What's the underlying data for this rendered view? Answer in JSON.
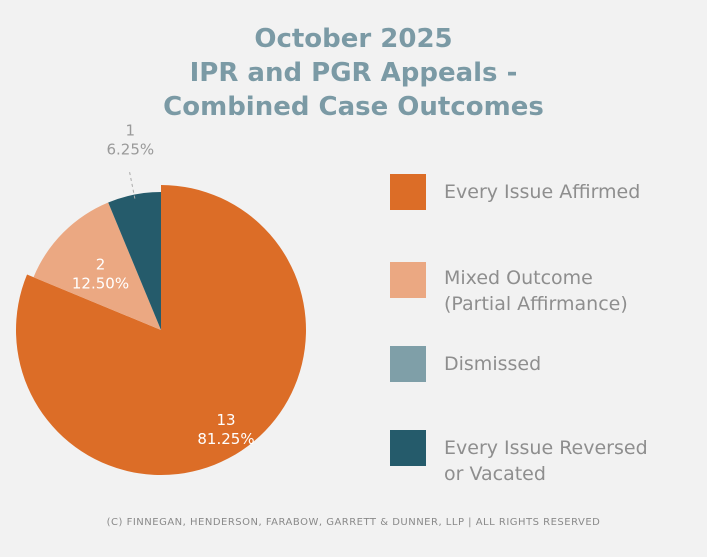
{
  "chart_data": {
    "type": "pie",
    "title_lines": [
      "October 2025",
      "IPR and PGR Appeals -",
      "Combined Case Outcomes"
    ],
    "slices": [
      {
        "label": "Every Issue Affirmed",
        "value": 13,
        "percent_label": "81.25%",
        "color": "#dc6d27"
      },
      {
        "label": "Mixed Outcome\n(Partial Affirmance)",
        "value": 2,
        "percent_label": "12.50%",
        "color": "#eba882"
      },
      {
        "label": "Dismissed",
        "value": 0,
        "percent_label": "",
        "color": "#7f9fa8"
      },
      {
        "label": "Every Issue Reversed\nor Vacated",
        "value": 1,
        "percent_label": "6.25%",
        "color": "#255b6b"
      }
    ],
    "start_angle": "top",
    "direction": "clockwise",
    "legend_position": "right"
  },
  "footer": "(C) FINNEGAN, HENDERSON, FARABOW, GARRETT & DUNNER, LLP | ALL RIGHTS RESERVED"
}
